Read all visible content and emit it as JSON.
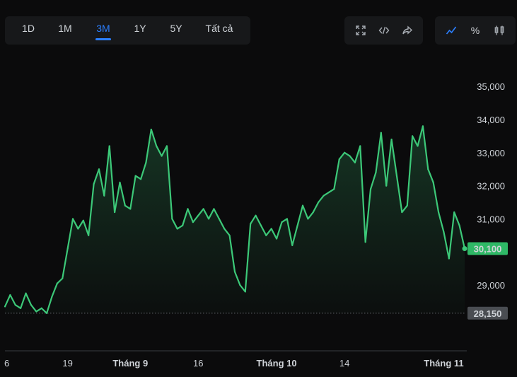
{
  "range_tabs": [
    {
      "label": "1D",
      "active": false
    },
    {
      "label": "1M",
      "active": false
    },
    {
      "label": "3M",
      "active": true
    },
    {
      "label": "1Y",
      "active": false
    },
    {
      "label": "5Y",
      "active": false
    },
    {
      "label": "Tất cả",
      "active": false
    }
  ],
  "tools": [
    {
      "name": "fullscreen-icon"
    },
    {
      "name": "embed-code-icon"
    },
    {
      "name": "share-icon"
    }
  ],
  "chart_types": [
    {
      "name": "line-chart-icon",
      "active": true
    },
    {
      "name": "percent-icon",
      "label": "%",
      "active": false
    },
    {
      "name": "candlestick-icon",
      "active": false
    }
  ],
  "colors": {
    "up": "#3cc878",
    "down": "#e5484d",
    "accent": "#2b7fff",
    "current_badge": "#2fb866",
    "ref_badge": "#4a4d52"
  },
  "chart_data": {
    "type": "line",
    "y_ticks": [
      "35,000",
      "34,000",
      "33,000",
      "32,000",
      "31,000",
      "29,000"
    ],
    "ylim": [
      28000,
      35500
    ],
    "x_ticks": [
      {
        "label": "6",
        "bold": false,
        "i": 0
      },
      {
        "label": "19",
        "bold": false,
        "i": 12
      },
      {
        "label": "Tháng 9",
        "bold": true,
        "i": 24
      },
      {
        "label": "16",
        "bold": false,
        "i": 37
      },
      {
        "label": "Tháng 10",
        "bold": true,
        "i": 52
      },
      {
        "label": "14",
        "bold": false,
        "i": 65
      },
      {
        "label": "Tháng 11",
        "bold": true,
        "i": 84
      }
    ],
    "reference_value": 28150,
    "reference_label": "28,150",
    "current_value": 30100,
    "current_label": "30,100",
    "values": [
      28350,
      28700,
      28400,
      28300,
      28750,
      28400,
      28200,
      28300,
      28150,
      28650,
      29050,
      29200,
      30100,
      31000,
      30700,
      30950,
      30500,
      32050,
      32500,
      31700,
      33200,
      31200,
      32100,
      31400,
      31300,
      32300,
      32200,
      32700,
      33700,
      33200,
      32900,
      33200,
      31000,
      30700,
      30800,
      31300,
      30900,
      31100,
      31300,
      31000,
      31300,
      31000,
      30700,
      30500,
      29400,
      29000,
      28800,
      30850,
      31100,
      30800,
      30500,
      30700,
      30400,
      30900,
      31000,
      30200,
      30800,
      31400,
      31000,
      31200,
      31500,
      31700,
      31800,
      31900,
      32800,
      33000,
      32900,
      32700,
      33200,
      30300,
      31900,
      32400,
      33600,
      32000,
      33400,
      32300,
      31200,
      31400,
      33500,
      33200,
      33800,
      32500,
      32100,
      31200,
      30600,
      29800,
      31200,
      30800,
      30100
    ]
  }
}
